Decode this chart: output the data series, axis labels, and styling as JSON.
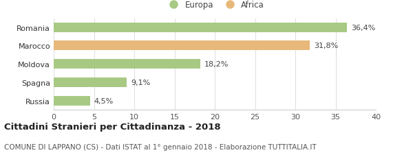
{
  "categories": [
    "Russia",
    "Spagna",
    "Moldova",
    "Marocco",
    "Romania"
  ],
  "values": [
    4.5,
    9.1,
    18.2,
    31.8,
    36.4
  ],
  "labels": [
    "4,5%",
    "9,1%",
    "18,2%",
    "31,8%",
    "36,4%"
  ],
  "colors": [
    "#a8c984",
    "#a8c984",
    "#a8c984",
    "#e8b87a",
    "#a8c984"
  ],
  "legend_europa_color": "#a8c984",
  "legend_africa_color": "#e8b87a",
  "xlim": [
    0,
    40
  ],
  "xticks": [
    0,
    5,
    10,
    15,
    20,
    25,
    30,
    35,
    40
  ],
  "title_bold": "Cittadini Stranieri per Cittadinanza - 2018",
  "subtitle": "COMUNE DI LAPPANO (CS) - Dati ISTAT al 1° gennaio 2018 - Elaborazione TUTTITALIA.IT",
  "background_color": "#ffffff",
  "bar_height": 0.52,
  "title_fontsize": 9.5,
  "subtitle_fontsize": 7.5,
  "label_fontsize": 8,
  "tick_fontsize": 8,
  "legend_fontsize": 8.5
}
